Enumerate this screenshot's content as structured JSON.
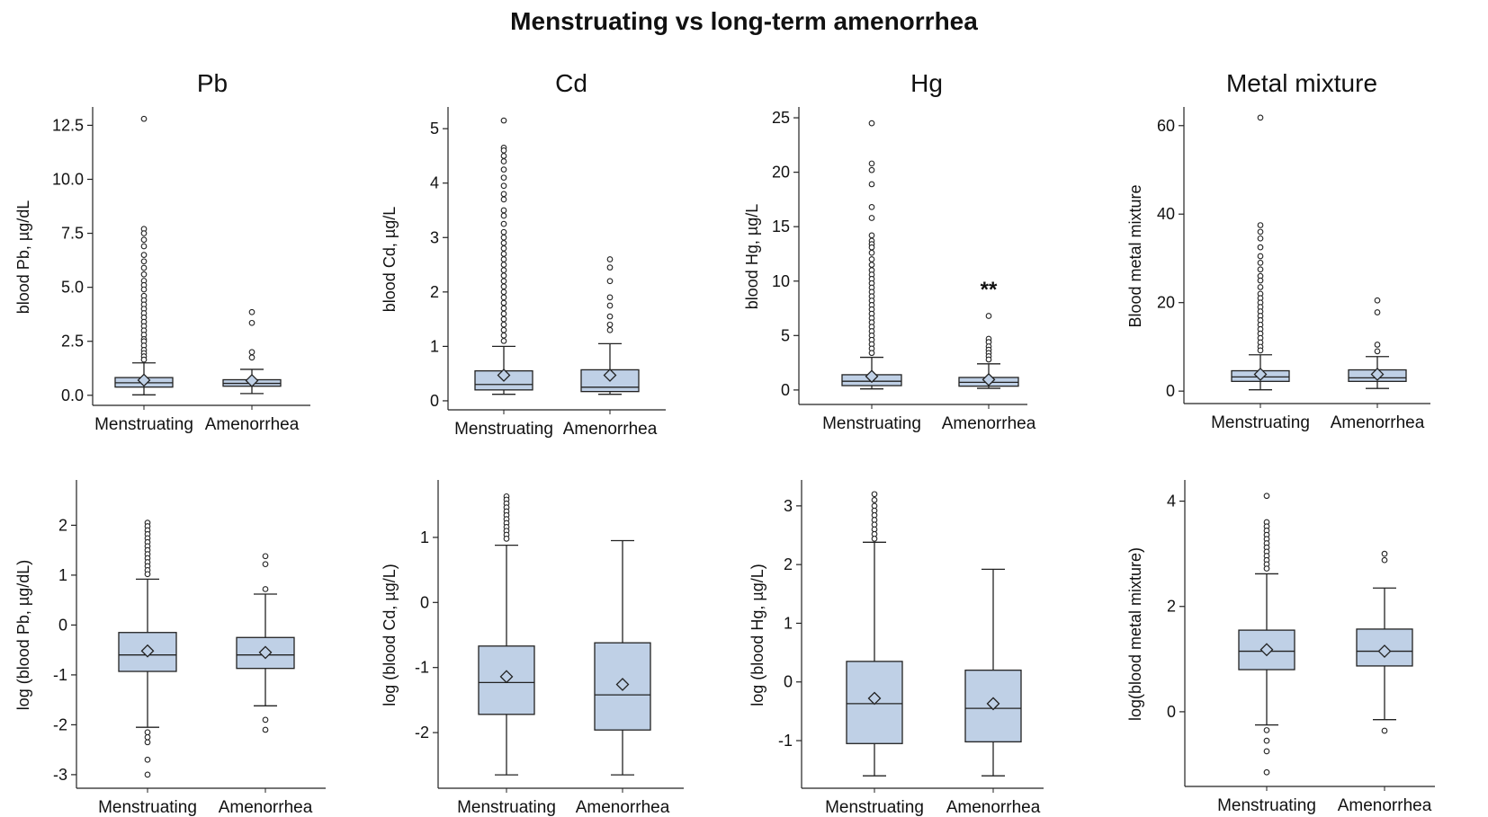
{
  "title": "Menstruating  vs long-term amenorrhea",
  "colors": {
    "box_fill": "#bfd0e6",
    "stroke": "#222222",
    "background": "#ffffff"
  },
  "chart_data": [
    {
      "type": "boxplot",
      "panel_title": "Pb",
      "ylabel": "blood Pb, µg/dL",
      "categories": [
        "Menstruating",
        "Amenorrhea"
      ],
      "ylim": [
        -0.3,
        13.1
      ],
      "yticks": [
        0.0,
        2.5,
        5.0,
        7.5,
        10.0,
        12.5
      ],
      "ytick_labels": [
        "0.0",
        "2.5",
        "5.0",
        "7.5",
        "10.0",
        "12.5"
      ],
      "series": [
        {
          "name": "Menstruating",
          "whisker_low": 0.02,
          "q1": 0.38,
          "median": 0.58,
          "q3": 0.82,
          "whisker_high": 1.5,
          "mean": 0.7,
          "outliers": [
            12.8,
            7.7,
            7.5,
            7.2,
            6.9,
            6.5,
            6.2,
            5.9,
            5.6,
            5.3,
            5.1,
            4.9,
            4.6,
            4.4,
            4.2,
            4.0,
            3.8,
            3.6,
            3.4,
            3.2,
            3.0,
            2.8,
            2.6,
            2.5,
            2.3,
            2.1,
            1.95,
            1.8,
            1.65
          ]
        },
        {
          "name": "Amenorrhea",
          "whisker_low": 0.08,
          "q1": 0.42,
          "median": 0.55,
          "q3": 0.72,
          "whisker_high": 1.2,
          "mean": 0.68,
          "outliers": [
            3.85,
            3.35,
            2.0,
            1.75
          ]
        }
      ]
    },
    {
      "type": "boxplot",
      "panel_title": "Cd",
      "ylabel": "blood Cd, µg/L",
      "categories": [
        "Menstruating",
        "Amenorrhea"
      ],
      "ylim": [
        -0.1,
        5.3
      ],
      "yticks": [
        0,
        1,
        2,
        3,
        4,
        5
      ],
      "ytick_labels": [
        "0",
        "1",
        "2",
        "3",
        "4",
        "5"
      ],
      "series": [
        {
          "name": "Menstruating",
          "whisker_low": 0.12,
          "q1": 0.2,
          "median": 0.3,
          "q3": 0.55,
          "whisker_high": 1.0,
          "mean": 0.47,
          "outliers": [
            5.15,
            4.65,
            4.6,
            4.5,
            4.4,
            4.25,
            4.1,
            3.95,
            3.8,
            3.7,
            3.5,
            3.4,
            3.25,
            3.1,
            3.0,
            2.9,
            2.8,
            2.7,
            2.6,
            2.5,
            2.4,
            2.3,
            2.2,
            2.1,
            2.0,
            1.9,
            1.8,
            1.7,
            1.6,
            1.5,
            1.4,
            1.3,
            1.2,
            1.1
          ]
        },
        {
          "name": "Amenorrhea",
          "whisker_low": 0.12,
          "q1": 0.17,
          "median": 0.25,
          "q3": 0.57,
          "whisker_high": 1.05,
          "mean": 0.47,
          "outliers": [
            2.6,
            2.45,
            2.2,
            1.9,
            1.75,
            1.55,
            1.4,
            1.3
          ]
        }
      ]
    },
    {
      "type": "boxplot",
      "panel_title": "Hg",
      "ylabel": "blood Hg, µg/L",
      "categories": [
        "Menstruating",
        "Amenorrhea"
      ],
      "ylim": [
        -1,
        25.5
      ],
      "yticks": [
        0,
        5,
        10,
        15,
        20,
        25
      ],
      "ytick_labels": [
        "0",
        "5",
        "10",
        "15",
        "20",
        "25"
      ],
      "annotations": [
        {
          "category": "Amenorrhea",
          "text": "**",
          "y": 9.3
        }
      ],
      "series": [
        {
          "name": "Menstruating",
          "whisker_low": 0.1,
          "q1": 0.4,
          "median": 0.8,
          "q3": 1.4,
          "whisker_high": 3.0,
          "mean": 1.25,
          "outliers": [
            24.5,
            20.8,
            20.2,
            18.9,
            16.8,
            15.8,
            14.2,
            13.7,
            13.4,
            13.1,
            12.6,
            12.0,
            11.5,
            11.0,
            10.6,
            10.2,
            9.8,
            9.4,
            9.0,
            8.6,
            8.2,
            7.8,
            7.4,
            7.0,
            6.6,
            6.2,
            5.8,
            5.4,
            5.0,
            4.6,
            4.2,
            3.8,
            3.4
          ]
        },
        {
          "name": "Amenorrhea",
          "whisker_low": 0.15,
          "q1": 0.35,
          "median": 0.7,
          "q3": 1.15,
          "whisker_high": 2.4,
          "mean": 0.95,
          "outliers": [
            6.8,
            4.7,
            4.4,
            4.0,
            3.7,
            3.4,
            3.1,
            2.8
          ]
        }
      ]
    },
    {
      "type": "boxplot",
      "panel_title": "Metal mixture",
      "ylabel": "Blood metal mixture",
      "categories": [
        "Menstruating",
        "Amenorrhea"
      ],
      "ylim": [
        -2,
        63
      ],
      "yticks": [
        0,
        20,
        40,
        60
      ],
      "ytick_labels": [
        "0",
        "20",
        "40",
        "60"
      ],
      "series": [
        {
          "name": "Menstruating",
          "whisker_low": 0.3,
          "q1": 2.2,
          "median": 3.2,
          "q3": 4.6,
          "whisker_high": 8.2,
          "mean": 3.8,
          "outliers": [
            61.8,
            37.5,
            36.0,
            34.5,
            32.5,
            30.5,
            29.0,
            27.5,
            26.0,
            25.0,
            23.5,
            22.0,
            21.0,
            20.0,
            19.0,
            18.0,
            17.0,
            16.0,
            15.0,
            14.0,
            13.0,
            12.0,
            11.0,
            10.0,
            9.2
          ]
        },
        {
          "name": "Amenorrhea",
          "whisker_low": 0.6,
          "q1": 2.2,
          "median": 3.0,
          "q3": 4.8,
          "whisker_high": 7.8,
          "mean": 3.8,
          "outliers": [
            20.5,
            17.8,
            10.5,
            9.0
          ]
        }
      ]
    },
    {
      "type": "boxplot",
      "panel_title": "",
      "ylabel": "log (blood Pb, µg/dL)",
      "categories": [
        "Menstruating",
        "Amenorrhea"
      ],
      "ylim": [
        -3.2,
        2.8
      ],
      "yticks": [
        -3,
        -2,
        -1,
        0,
        1,
        2
      ],
      "ytick_labels": [
        "-3",
        "-2",
        "-1",
        "0",
        "1",
        "2"
      ],
      "series": [
        {
          "name": "Menstruating",
          "whisker_low": -2.05,
          "q1": -0.93,
          "median": -0.6,
          "q3": -0.15,
          "whisker_high": 0.92,
          "mean": -0.52,
          "outliers": [
            2.05,
            1.98,
            1.9,
            1.82,
            1.74,
            1.66,
            1.58,
            1.5,
            1.42,
            1.34,
            1.26,
            1.18,
            1.1,
            1.02,
            -2.15,
            -2.25,
            -2.35,
            -2.7,
            -3.0
          ]
        },
        {
          "name": "Amenorrhea",
          "whisker_low": -1.62,
          "q1": -0.87,
          "median": -0.6,
          "q3": -0.25,
          "whisker_high": 0.62,
          "mean": -0.55,
          "outliers": [
            1.38,
            1.22,
            0.72,
            -1.9,
            -2.1
          ]
        }
      ]
    },
    {
      "type": "boxplot",
      "panel_title": "",
      "ylabel": "log (blood Cd, µg/L)",
      "categories": [
        "Menstruating",
        "Amenorrhea"
      ],
      "ylim": [
        -2.8,
        1.8
      ],
      "yticks": [
        -2,
        -1,
        0,
        1
      ],
      "ytick_labels": [
        "-2",
        "-1",
        "0",
        "1"
      ],
      "series": [
        {
          "name": "Menstruating",
          "whisker_low": -2.65,
          "q1": -1.72,
          "median": -1.23,
          "q3": -0.67,
          "whisker_high": 0.88,
          "mean": -1.14,
          "outliers": [
            1.63,
            1.58,
            1.52,
            1.46,
            1.4,
            1.34,
            1.28,
            1.22,
            1.16,
            1.1,
            1.04,
            0.98
          ]
        },
        {
          "name": "Amenorrhea",
          "whisker_low": -2.65,
          "q1": -1.96,
          "median": -1.42,
          "q3": -0.62,
          "whisker_high": 0.95,
          "mean": -1.26,
          "outliers": []
        }
      ]
    },
    {
      "type": "boxplot",
      "panel_title": "",
      "ylabel": "log (blood Hg, µg/L)",
      "categories": [
        "Menstruating",
        "Amenorrhea"
      ],
      "ylim": [
        -1.75,
        3.35
      ],
      "yticks": [
        -1,
        0,
        1,
        2,
        3
      ],
      "ytick_labels": [
        "-1",
        "0",
        "1",
        "2",
        "3"
      ],
      "series": [
        {
          "name": "Menstruating",
          "whisker_low": -1.6,
          "q1": -1.05,
          "median": -0.37,
          "q3": 0.35,
          "whisker_high": 2.38,
          "mean": -0.28,
          "outliers": [
            3.2,
            3.1,
            3.0,
            2.92,
            2.84,
            2.76,
            2.68,
            2.6,
            2.52,
            2.44
          ]
        },
        {
          "name": "Amenorrhea",
          "whisker_low": -1.6,
          "q1": -1.02,
          "median": -0.45,
          "q3": 0.2,
          "whisker_high": 1.92,
          "mean": -0.37,
          "outliers": []
        }
      ]
    },
    {
      "type": "boxplot",
      "panel_title": "",
      "ylabel": "log(blood metal mixture)",
      "categories": [
        "Menstruating",
        "Amenorrhea"
      ],
      "ylim": [
        -1.35,
        4.3
      ],
      "yticks": [
        0,
        2,
        4
      ],
      "ytick_labels": [
        "0",
        "2",
        "4"
      ],
      "series": [
        {
          "name": "Menstruating",
          "whisker_low": -0.25,
          "q1": 0.8,
          "median": 1.15,
          "q3": 1.55,
          "whisker_high": 2.62,
          "mean": 1.18,
          "outliers": [
            4.1,
            3.6,
            3.52,
            3.44,
            3.36,
            3.28,
            3.2,
            3.12,
            3.04,
            2.96,
            2.88,
            2.8,
            2.72,
            -0.35,
            -0.55,
            -0.75,
            -1.15
          ]
        },
        {
          "name": "Amenorrhea",
          "whisker_low": -0.15,
          "q1": 0.87,
          "median": 1.15,
          "q3": 1.57,
          "whisker_high": 2.35,
          "mean": 1.15,
          "outliers": [
            3.0,
            2.88,
            -0.36
          ]
        }
      ]
    }
  ]
}
